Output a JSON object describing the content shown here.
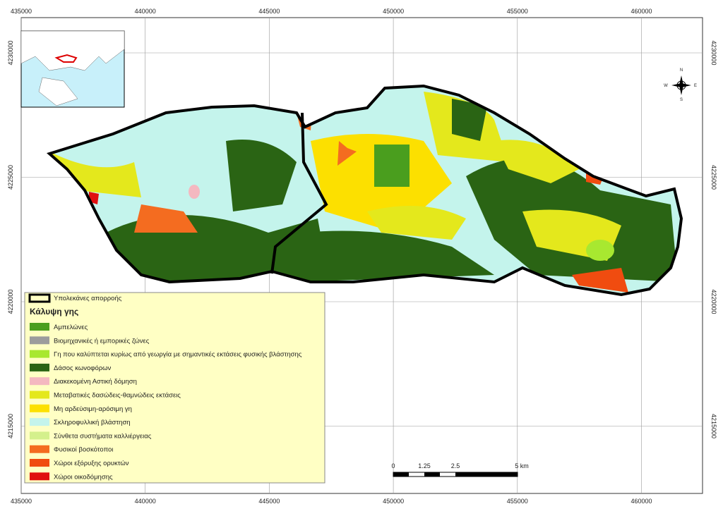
{
  "grid": {
    "x_labels": [
      "435000",
      "440000",
      "445000",
      "450000",
      "455000",
      "460000"
    ],
    "y_labels": [
      "4230000",
      "4225000",
      "4220000",
      "4215000"
    ]
  },
  "compass": {
    "north": "N",
    "south": "S",
    "west": "W",
    "east": "E"
  },
  "legend": {
    "boundary_label": "Υπολεκάνες απορροής",
    "title": "Κάλυψη γης",
    "items": [
      {
        "label": "Αμπελώνες",
        "color": "#4a9e1e"
      },
      {
        "label": "Βιομηχανικές ή εμπορικές ζώνες",
        "color": "#9c9c9c"
      },
      {
        "label": "Γη που καλύπτεται κυρίως από γεωργία με σημαντικές εκτάσεις φυσικής βλάστησης",
        "color": "#a8e830"
      },
      {
        "label": "Δάσος κωνοφόρων",
        "color": "#2a6414"
      },
      {
        "label": "Διακεκομένη Αστική δόμηση",
        "color": "#f4b8c0"
      },
      {
        "label": "Μεταβατικές δασώδεις-θαμνώδεις εκτάσεις",
        "color": "#e4e81c"
      },
      {
        "label": "Μη αρδεύσιμη-αρόσιμη γη",
        "color": "#fce000"
      },
      {
        "label": "Σκληροφυλλική βλάστηση",
        "color": "#c4f4ec"
      },
      {
        "label": "Σύνθετα συστήματα καλλιέργειας",
        "color": "#d4f08c"
      },
      {
        "label": "Φυσικοί βοσκότοποι",
        "color": "#f46c20"
      },
      {
        "label": "Χώροι εξόρυξης ορυκτών",
        "color": "#f04c10"
      },
      {
        "label": "Χώροι οικοδόμησης",
        "color": "#e01010"
      }
    ]
  },
  "scale_bar": {
    "labels": [
      "0",
      "1.25",
      "2.5",
      "5 km"
    ]
  }
}
